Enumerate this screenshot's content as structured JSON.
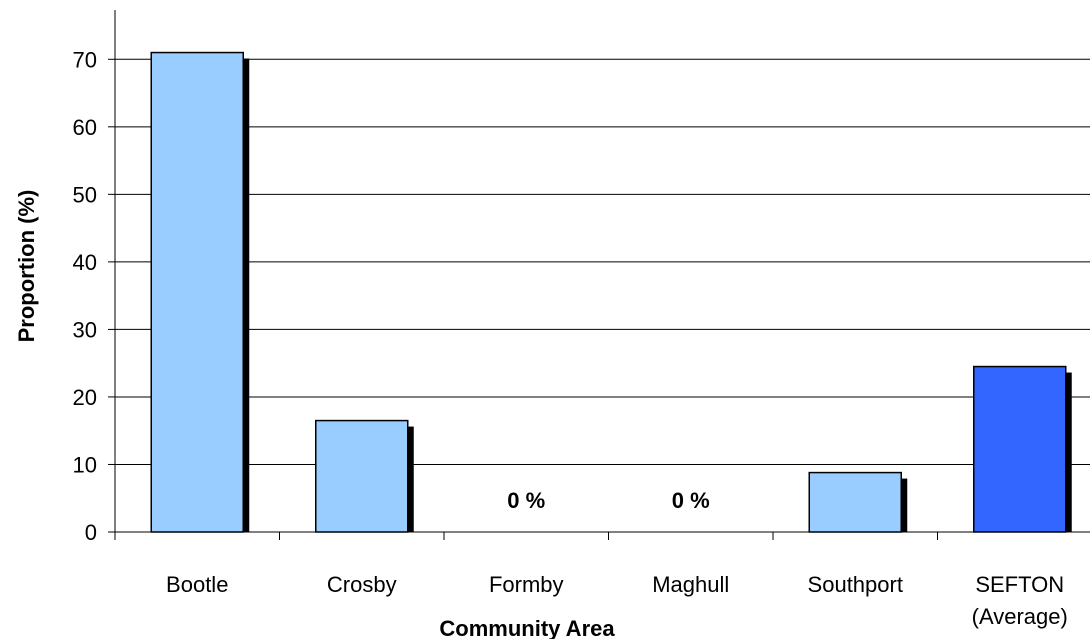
{
  "chart_data": {
    "type": "bar",
    "title": "",
    "xlabel": "Community Area",
    "ylabel": "Proportion (%)",
    "ylim": [
      0,
      70
    ],
    "yticks": [
      0,
      10,
      20,
      30,
      40,
      50,
      60,
      70
    ],
    "grid": true,
    "legend": "none",
    "categories": [
      [
        "Bootle"
      ],
      [
        "Crosby"
      ],
      [
        "Formby"
      ],
      [
        "Maghull"
      ],
      [
        "Southport"
      ],
      [
        "SEFTON",
        "(Average)"
      ]
    ],
    "values": [
      71,
      16.5,
      0,
      0,
      8.8,
      24.5
    ],
    "data_labels": [
      "",
      "",
      "0 %",
      "0 %",
      "",
      ""
    ],
    "colors": [
      "#99ccff",
      "#99ccff",
      "#99ccff",
      "#99ccff",
      "#99ccff",
      "#3366ff"
    ]
  }
}
